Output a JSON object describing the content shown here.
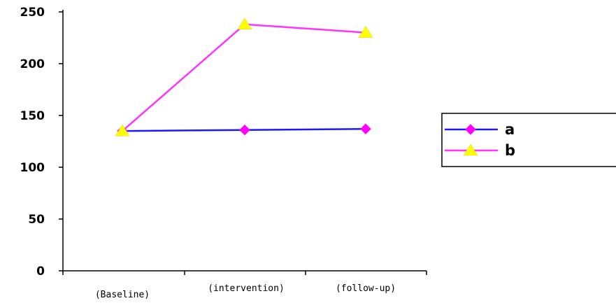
{
  "chart_data": {
    "type": "line",
    "categories": [
      "(Baseline)",
      "(intervention)",
      "(follow-up)"
    ],
    "series": [
      {
        "name": "a",
        "values": [
          135,
          136,
          137
        ],
        "color": "#1a1aff",
        "marker": "diamond",
        "marker_color": "#ff00ff"
      },
      {
        "name": "b",
        "values": [
          135,
          238,
          230
        ],
        "color": "#ff33ff",
        "marker": "triangle",
        "marker_color": "#ffff00"
      }
    ],
    "ylim": [
      0,
      250
    ],
    "yticks": [
      0,
      50,
      100,
      150,
      200,
      250
    ],
    "grid": false,
    "legend_position": "right"
  }
}
